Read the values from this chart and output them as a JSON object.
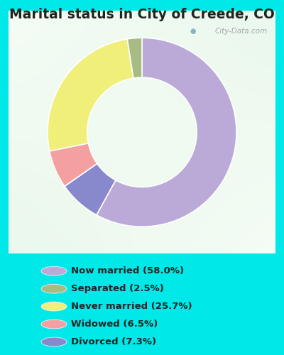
{
  "title": "Marital status in City of Creede, CO",
  "title_fontsize": 13.5,
  "slices": [
    58.0,
    7.3,
    6.5,
    25.7,
    2.5
  ],
  "legend_labels": [
    "Now married (58.0%)",
    "Separated (2.5%)",
    "Never married (25.7%)",
    "Widowed (6.5%)",
    "Divorced (7.3%)"
  ],
  "legend_colors": [
    "#bbaad8",
    "#a8bb85",
    "#f0ef7a",
    "#f4a0a0",
    "#8888cc"
  ],
  "pie_colors": [
    "#bbaad8",
    "#8888cc",
    "#f4a0a0",
    "#f0ef7a",
    "#a8bb85"
  ],
  "bg_cyan": "#00e8e8",
  "chart_border_color": "#c8e8c8",
  "watermark": "City-Data.com",
  "donut_width": 0.42,
  "start_angle": 90,
  "title_color": "#222222"
}
